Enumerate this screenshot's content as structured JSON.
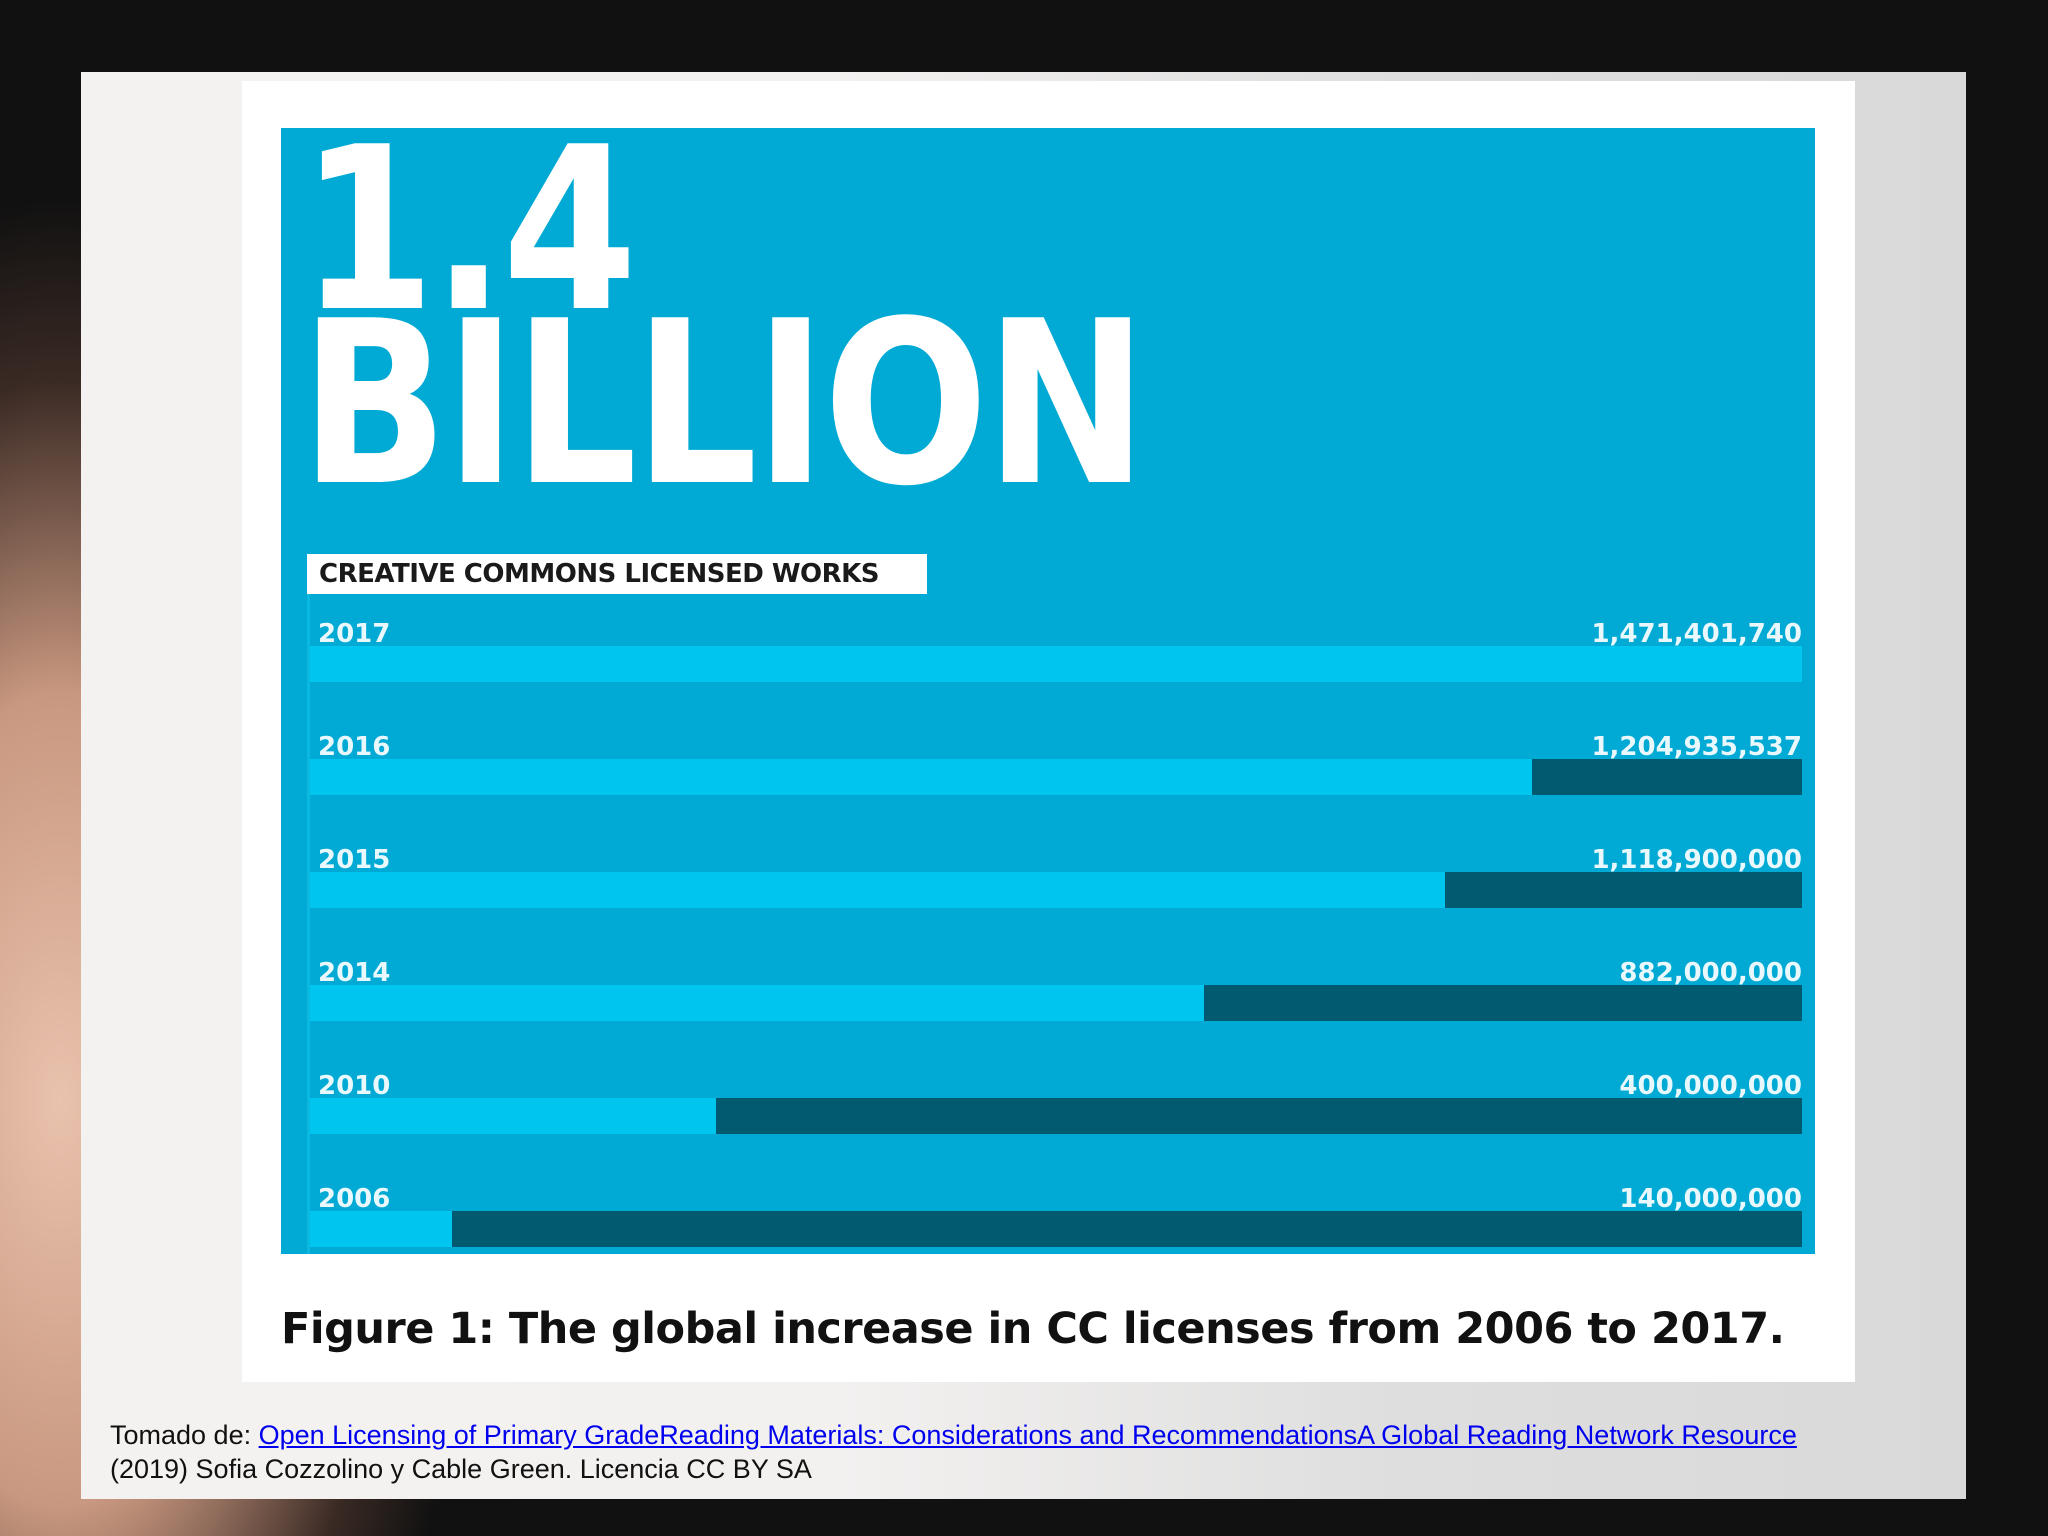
{
  "headline": {
    "number": "1.4",
    "unit": "BILLION"
  },
  "chart_data": {
    "type": "bar",
    "orientation": "horizontal",
    "title": "CREATIVE COMMONS LICENSED WORKS",
    "categories": [
      "2017",
      "2016",
      "2015",
      "2014",
      "2010",
      "2006"
    ],
    "values": [
      1471401740,
      1204935537,
      1118900000,
      882000000,
      400000000,
      140000000
    ],
    "value_labels": [
      "1,471,401,740",
      "1,204,935,537",
      "1,118,900,000",
      "882,000,000",
      "400,000,000",
      "140,000,000"
    ],
    "xlim": [
      0,
      1471401740
    ],
    "colors": {
      "background": "#00aad4",
      "bar": "#00c6ef",
      "remainder": "#015a70"
    }
  },
  "caption": "Figure 1: The global increase in CC licenses from 2006 to 2017.",
  "citation": {
    "prefix": "Tomado de: ",
    "link_text": "Open Licensing of Primary GradeReading Materials: Considerations and RecommendationsA Global Reading Network Resource",
    "line2": "(2019) Sofia Cozzolino y Cable Green. Licencia CC BY SA"
  }
}
